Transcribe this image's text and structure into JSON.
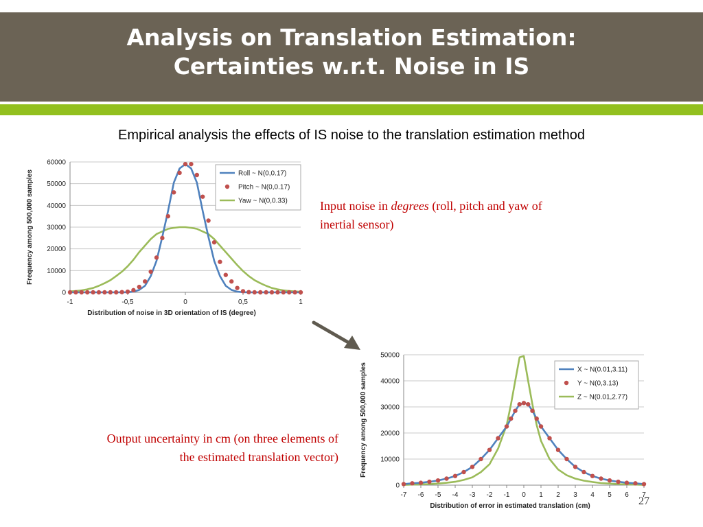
{
  "slide": {
    "title_line1": "Analysis on Translation Estimation:",
    "title_line2": "Certainties w.r.t. Noise in IS",
    "subtitle": "Empirical analysis the effects of IS noise to the translation estimation method",
    "note1_prefix": "Input noise in ",
    "note1_em": "degrees",
    "note1_suffix": " (roll, pitch and yaw of inertial sensor)",
    "note2": "Output uncertainty in cm (on three elements of the estimated translation vector)",
    "slide_number": "27",
    "colors": {
      "title_bar": "#6b6355",
      "accent_bar": "#92c01f",
      "note_text": "#c00000"
    }
  },
  "chart_data": [
    {
      "type": "line",
      "xlabel": "Distribution of noise in 3D orientation of IS (degree)",
      "ylabel": "Frequency  among  500,000  samples",
      "xlim": [
        -1,
        1
      ],
      "ylim": [
        0,
        60000
      ],
      "x_ticks": [
        "-1",
        "-0,5",
        "0",
        "0,5",
        "1"
      ],
      "y_ticks": [
        "0",
        "10000",
        "20000",
        "30000",
        "40000",
        "50000",
        "60000"
      ],
      "grid": "horizontal",
      "legend_position": "top-right",
      "x": [
        -1,
        -0.95,
        -0.9,
        -0.85,
        -0.8,
        -0.75,
        -0.7,
        -0.65,
        -0.6,
        -0.55,
        -0.5,
        -0.45,
        -0.4,
        -0.35,
        -0.3,
        -0.25,
        -0.2,
        -0.15,
        -0.1,
        -0.05,
        0,
        0.05,
        0.1,
        0.15,
        0.2,
        0.25,
        0.3,
        0.35,
        0.4,
        0.45,
        0.5,
        0.55,
        0.6,
        0.65,
        0.7,
        0.75,
        0.8,
        0.85,
        0.9,
        0.95,
        1
      ],
      "series": [
        {
          "name": "Roll ~ N(0,0.17)",
          "style": "line",
          "color": "#4f81bd",
          "values": [
            0,
            0,
            0,
            0,
            0,
            0,
            0,
            0,
            0,
            10,
            50,
            300,
            1100,
            3000,
            7500,
            14500,
            25500,
            37500,
            50500,
            57000,
            59000,
            57000,
            50500,
            37500,
            25500,
            14500,
            7500,
            3000,
            1100,
            300,
            50,
            10,
            0,
            0,
            0,
            0,
            0,
            0,
            0,
            0,
            0
          ]
        },
        {
          "name": "Pitch ~ N(0,0.17)",
          "style": "markers",
          "color": "#c0504d",
          "values": [
            0,
            0,
            0,
            0,
            0,
            0,
            0,
            0,
            0,
            100,
            300,
            1000,
            2500,
            5000,
            9500,
            16000,
            25000,
            35000,
            46000,
            55000,
            59000,
            59000,
            54000,
            44000,
            33000,
            23000,
            14000,
            8000,
            5000,
            2000,
            500,
            100,
            0,
            0,
            0,
            0,
            0,
            0,
            0,
            0,
            0
          ]
        },
        {
          "name": "Yaw  ~ N(0,0.33)",
          "style": "line",
          "color": "#9bbb59",
          "values": [
            400,
            600,
            900,
            1400,
            2000,
            3000,
            4200,
            5600,
            7500,
            9500,
            12000,
            15000,
            18500,
            21500,
            24500,
            26800,
            28000,
            29200,
            29700,
            30000,
            30000,
            29700,
            29200,
            28000,
            26800,
            24500,
            21500,
            18500,
            15500,
            12500,
            9800,
            7500,
            5600,
            4200,
            3000,
            2000,
            1400,
            900,
            600,
            400,
            250
          ]
        }
      ]
    },
    {
      "type": "line",
      "xlabel": "Distribution of error in estimated translation (cm)",
      "ylabel": "Frequency  among  500,000  samples",
      "xlim": [
        -7,
        7
      ],
      "ylim": [
        0,
        50000
      ],
      "x_ticks": [
        "-7",
        "-6",
        "-5",
        "-4",
        "-3",
        "-2",
        "-1",
        "0",
        "1",
        "2",
        "3",
        "4",
        "5",
        "6",
        "7"
      ],
      "y_ticks": [
        "0",
        "10000",
        "20000",
        "30000",
        "40000",
        "50000"
      ],
      "grid": "horizontal",
      "legend_position": "top-right",
      "x": [
        -7,
        -6.5,
        -6,
        -5.5,
        -5,
        -4.5,
        -4,
        -3.5,
        -3,
        -2.5,
        -2,
        -1.5,
        -1,
        -0.75,
        -0.5,
        -0.25,
        0,
        0.25,
        0.5,
        0.75,
        1,
        1.5,
        2,
        2.5,
        3,
        3.5,
        4,
        4.5,
        5,
        5.5,
        6,
        6.5,
        7
      ],
      "series": [
        {
          "name": "X ~ N(0.01,3.11)",
          "style": "line",
          "color": "#4f81bd",
          "values": [
            400,
            700,
            900,
            1300,
            1800,
            2500,
            3500,
            5000,
            7000,
            10000,
            13500,
            18000,
            22500,
            25500,
            28500,
            31000,
            31500,
            31000,
            28500,
            25500,
            22500,
            18000,
            13500,
            10000,
            7000,
            5000,
            3500,
            2500,
            1800,
            1300,
            900,
            700,
            400
          ]
        },
        {
          "name": "Y ~ N(0,3.13)",
          "style": "markers",
          "color": "#c0504d",
          "values": [
            400,
            700,
            900,
            1300,
            1800,
            2500,
            3500,
            5000,
            7000,
            10000,
            13500,
            18000,
            22500,
            25500,
            28500,
            31000,
            31500,
            31000,
            28500,
            25500,
            22500,
            18000,
            13500,
            10000,
            7000,
            5000,
            3500,
            2500,
            1800,
            1300,
            900,
            700,
            400
          ]
        },
        {
          "name": "Z ~ N(0.01,2.77)",
          "style": "line",
          "color": "#9bbb59",
          "values": [
            100,
            200,
            300,
            400,
            600,
            900,
            1300,
            2000,
            3000,
            5000,
            8000,
            14000,
            23000,
            31000,
            40000,
            49000,
            49500,
            40000,
            31000,
            23000,
            17000,
            10000,
            6000,
            3800,
            2500,
            1700,
            1200,
            800,
            600,
            400,
            300,
            200,
            100
          ]
        }
      ]
    }
  ]
}
